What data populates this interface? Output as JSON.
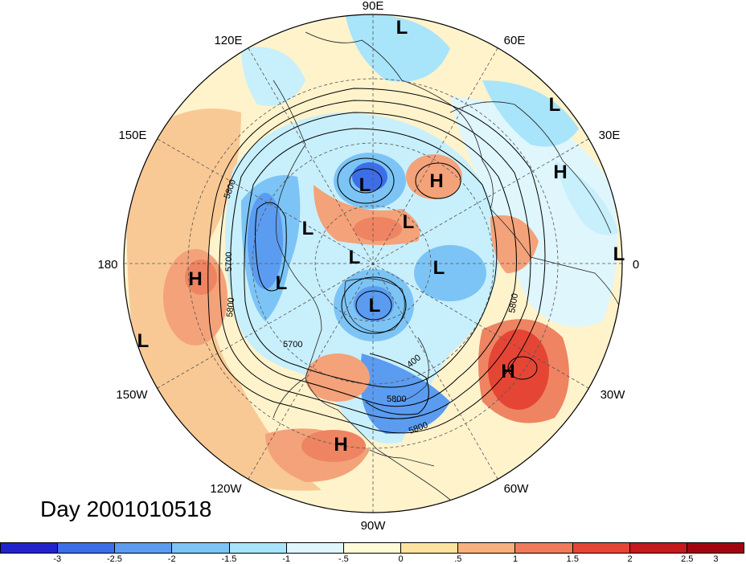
{
  "title": "Day 2001010518",
  "longitude_labels": [
    "90E",
    "60E",
    "30E",
    "0",
    "30W",
    "60W",
    "90W",
    "120W",
    "150W",
    "180",
    "150E",
    "120E"
  ],
  "pressure_centers": [
    {
      "label": "L",
      "id": "north-90e"
    },
    {
      "label": "L",
      "id": "ne-60e"
    },
    {
      "label": "H",
      "id": "east-30e"
    },
    {
      "label": "L",
      "id": "edge-0"
    },
    {
      "label": "H",
      "id": "siberia"
    },
    {
      "label": "L",
      "id": "siberia-east"
    },
    {
      "label": "L",
      "id": "east-asia"
    },
    {
      "label": "L",
      "id": "central-arctic"
    },
    {
      "label": "L",
      "id": "scandinavia"
    },
    {
      "label": "L",
      "id": "alaska"
    },
    {
      "label": "L",
      "id": "pacific-north"
    },
    {
      "label": "H",
      "id": "pacific-west"
    },
    {
      "label": "L",
      "id": "pacific-south"
    },
    {
      "label": "L",
      "id": "hudson-bay"
    },
    {
      "label": "H",
      "id": "atlantic"
    },
    {
      "label": "H",
      "id": "central-america"
    },
    {
      "label": "L",
      "id": "china"
    }
  ],
  "contour_labels": [
    "5800",
    "5700",
    "5800",
    "5700",
    "5800",
    "5800",
    "5800",
    "5800",
    "400"
  ],
  "colorbar": {
    "colors": [
      "#2222cc",
      "#3c6ee8",
      "#5b9cf0",
      "#7cc4f5",
      "#a8e4fa",
      "#dff6fd",
      "#fffbd8",
      "#fde3a0",
      "#f8b07c",
      "#f07b5a",
      "#e54535",
      "#c4191d",
      "#a0060f"
    ],
    "ticks": [
      "-3",
      "-2.5",
      "-2",
      "-1.5",
      "-1",
      "-.5",
      "0",
      ".5",
      "1",
      "1.5",
      "2",
      "2.5",
      "3"
    ]
  }
}
